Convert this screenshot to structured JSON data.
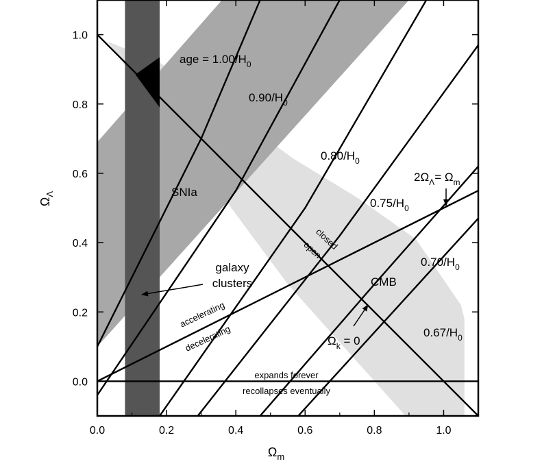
{
  "chart_data": {
    "type": "line",
    "xlabel": "Ωm",
    "ylabel": "ΩΛ",
    "xlim": [
      0.0,
      1.1
    ],
    "ylim": [
      -0.1,
      1.1
    ],
    "x_ticks": [
      "0.0",
      "0.2",
      "0.4",
      "0.6",
      "0.8",
      "1.0"
    ],
    "y_ticks": [
      "0.0",
      "0.2",
      "0.4",
      "0.6",
      "0.8",
      "1.0"
    ],
    "x_tick_values": [
      0.0,
      0.2,
      0.4,
      0.6,
      0.8,
      1.0
    ],
    "y_tick_values": [
      0.0,
      0.2,
      0.4,
      0.6,
      0.8,
      1.0
    ],
    "grid": false,
    "regions": [
      {
        "name": "CMB",
        "color": "#e0e0e0",
        "points": [
          [
            0.03,
            0.98
          ],
          [
            0.18,
            0.92
          ],
          [
            0.57,
            0.64
          ],
          [
            0.75,
            0.53
          ],
          [
            0.92,
            0.41
          ],
          [
            1.05,
            0.22
          ],
          [
            1.06,
            0.18
          ],
          [
            1.06,
            -0.1
          ],
          [
            0.89,
            -0.1
          ],
          [
            0.55,
            0.28
          ],
          [
            0.35,
            0.55
          ],
          [
            0.22,
            0.72
          ],
          [
            0.03,
            0.98
          ]
        ]
      },
      {
        "name": "SNIa",
        "color": "#a8a8a8",
        "points": [
          [
            0.0,
            0.69
          ],
          [
            0.36,
            1.1
          ],
          [
            0.9,
            1.1
          ],
          [
            0.0,
            0.1
          ]
        ]
      },
      {
        "name": "galaxy clusters",
        "color": "#555555",
        "points": [
          [
            0.08,
            -0.1
          ],
          [
            0.18,
            -0.1
          ],
          [
            0.18,
            1.1
          ],
          [
            0.08,
            1.1
          ]
        ]
      },
      {
        "name": "overlap",
        "color": "#000000",
        "points": [
          [
            0.11,
            0.885
          ],
          [
            0.18,
            0.935
          ],
          [
            0.18,
            0.79
          ]
        ]
      }
    ],
    "lines": [
      {
        "name": "flat",
        "points": [
          [
            0.0,
            1.0
          ],
          [
            1.1,
            -0.1
          ]
        ]
      },
      {
        "name": "acceleration",
        "points": [
          [
            0.0,
            0.0
          ],
          [
            1.1,
            0.55
          ]
        ]
      },
      {
        "name": "recollapse",
        "points": [
          [
            0.0,
            0.0
          ],
          [
            1.1,
            0.0
          ]
        ]
      }
    ],
    "age_contours": [
      {
        "label": "age = 1.00/H0",
        "points": [
          [
            0.0,
            0.1
          ],
          [
            0.3,
            0.7
          ],
          [
            0.47,
            1.1
          ]
        ]
      },
      {
        "label": "0.90/H0",
        "points": [
          [
            0.0,
            -0.04
          ],
          [
            0.4,
            0.55
          ],
          [
            0.7,
            1.1
          ]
        ]
      },
      {
        "label": "0.80/H0",
        "points": [
          [
            0.18,
            -0.1
          ],
          [
            0.6,
            0.5
          ],
          [
            0.95,
            1.1
          ]
        ]
      },
      {
        "label": "0.75/H0",
        "points": [
          [
            0.29,
            -0.1
          ],
          [
            0.7,
            0.42
          ],
          [
            1.1,
            0.97
          ]
        ]
      },
      {
        "label": "0.70/H0",
        "points": [
          [
            0.47,
            -0.1
          ],
          [
            0.8,
            0.28
          ],
          [
            1.1,
            0.62
          ]
        ]
      },
      {
        "label": "0.67/H0",
        "points": [
          [
            0.58,
            -0.1
          ],
          [
            1.1,
            0.47
          ]
        ]
      }
    ],
    "annotations": {
      "age_100": "age = 1.00/H",
      "age_090": "0.90/H",
      "age_080": "0.80/H",
      "age_075": "0.75/H",
      "age_070": "0.70/H",
      "age_067": "0.67/H",
      "h_sub": "0",
      "snia": "SNIa",
      "galaxy": "galaxy",
      "clusters": "clusters",
      "cmb": "CMB",
      "closed": "closed",
      "open": "open",
      "accelerating": "accelerating",
      "decelerating": "decelerating",
      "expands": "expands forever",
      "recollapses": "recollapses eventually",
      "omega_k": "Ω",
      "omega_k_sub": "k",
      "omega_k_rest": " = 0",
      "two_omega": "2Ω",
      "lambda_sub": "Λ",
      "equals_omega": "= Ω",
      "m_sub": "m"
    }
  }
}
